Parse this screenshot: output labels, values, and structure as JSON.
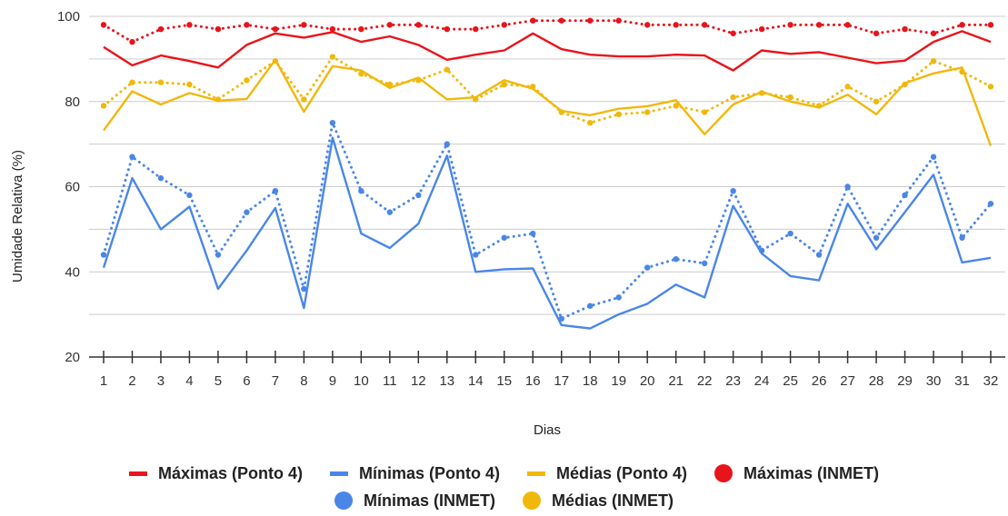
{
  "chart_data": {
    "type": "line",
    "title": "",
    "xlabel": "Dias",
    "ylabel": "Umidade Relativa (%)",
    "ylim": [
      20,
      100
    ],
    "yticks": [
      20,
      40,
      60,
      80,
      100
    ],
    "grid": true,
    "legend_position": "bottom",
    "x": [
      1,
      2,
      3,
      4,
      5,
      6,
      7,
      8,
      9,
      10,
      11,
      12,
      13,
      14,
      15,
      16,
      17,
      18,
      19,
      20,
      21,
      22,
      23,
      24,
      25,
      26,
      27,
      28,
      29,
      30,
      31,
      32
    ],
    "series": [
      {
        "name": "Máximas (Ponto 4)",
        "style": "solid",
        "color": "#e8141b",
        "values": [
          92.8,
          88.5,
          90.8,
          89.5,
          88,
          93.3,
          96,
          95,
          96.3,
          94,
          95.3,
          93.3,
          89.8,
          91,
          92,
          96,
          92.3,
          91,
          90.6,
          90.6,
          91,
          90.8,
          87.3,
          92,
          91.2,
          91.6,
          90.3,
          89,
          89.6,
          94,
          96.5,
          94
        ]
      },
      {
        "name": "Mínimas (Ponto 4)",
        "style": "solid",
        "color": "#4a86e8",
        "values": [
          41,
          62,
          50,
          55.3,
          36,
          45,
          55,
          31.5,
          71.5,
          49,
          45.6,
          51.3,
          67.3,
          40,
          40.6,
          40.8,
          27.5,
          26.7,
          30,
          32.5,
          37,
          34,
          55.5,
          44.3,
          39,
          38,
          56,
          45.3,
          54,
          62.8,
          42.2,
          43.3
        ]
      },
      {
        "name": "Médias (Ponto 4)",
        "style": "solid",
        "color": "#f1b80c",
        "values": [
          73.2,
          82.4,
          79.3,
          82,
          80.2,
          80.6,
          89.8,
          77.6,
          88.3,
          87.3,
          83.2,
          85.6,
          80.5,
          81,
          85,
          83,
          77.8,
          76.8,
          78.3,
          78.9,
          80.3,
          72.3,
          79.3,
          82.3,
          80,
          78.6,
          81.6,
          77,
          84.3,
          86.6,
          88,
          69.6
        ]
      },
      {
        "name": "Máximas (INMET)",
        "style": "dotted",
        "color": "#e8141b",
        "values": [
          98,
          94,
          97,
          98,
          97,
          98,
          97,
          98,
          97,
          97,
          98,
          98,
          97,
          97,
          98,
          99,
          99,
          99,
          99,
          98,
          98,
          98,
          96,
          97,
          98,
          98,
          98,
          96,
          97,
          96,
          98,
          98
        ]
      },
      {
        "name": "Mínimas (INMET)",
        "style": "dotted",
        "color": "#4a86e8",
        "values": [
          44,
          67,
          62,
          58,
          44,
          54,
          59,
          36,
          75,
          59,
          54,
          58,
          70,
          44,
          48,
          49,
          29,
          32,
          34,
          41,
          43,
          42,
          59,
          45,
          49,
          44,
          60,
          48,
          58,
          67,
          48,
          56
        ]
      },
      {
        "name": "Médias (INMET)",
        "style": "dotted",
        "color": "#f1b80c",
        "values": [
          79,
          84.5,
          84.5,
          84,
          80.5,
          85,
          89.5,
          80.5,
          90.5,
          86.5,
          84,
          85,
          87.5,
          80.5,
          84,
          83.5,
          77.5,
          75,
          77,
          77.5,
          79,
          77.5,
          81,
          82,
          81,
          79,
          83.5,
          80,
          84,
          89.5,
          87,
          83.5
        ]
      }
    ]
  },
  "legend": {
    "row1": [
      "Máximas (Ponto 4)",
      "Mínimas (Ponto 4)",
      "Médias (Ponto 4)",
      "Máximas (INMET)"
    ],
    "row2": [
      "Mínimas (INMET)",
      "Médias (INMET)"
    ]
  }
}
